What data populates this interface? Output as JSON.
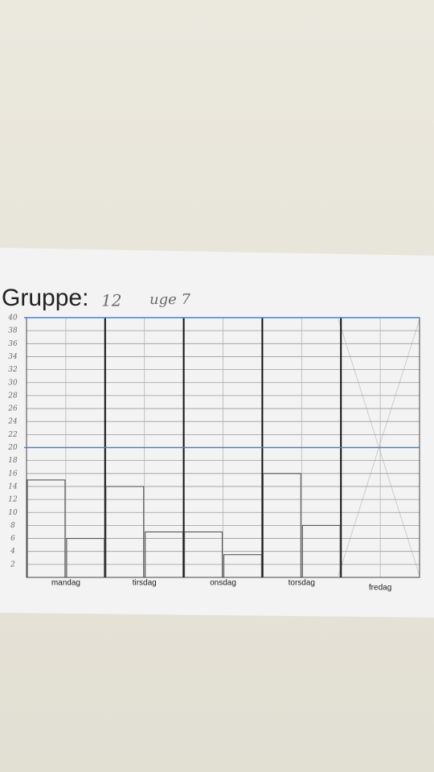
{
  "chart_data": {
    "type": "bar",
    "title": "Gruppe:",
    "annotations": [
      "12",
      "uge 7"
    ],
    "categories": [
      "mandag",
      "tirsdag",
      "onsdag",
      "torsdag",
      "fredag"
    ],
    "series": [
      {
        "color": "#555555",
        "values": [
          15,
          14,
          7,
          16,
          null
        ]
      },
      {
        "color": "#555555",
        "values": [
          6,
          7,
          3.5,
          8,
          null
        ]
      }
    ],
    "ylim": [
      0,
      40
    ],
    "yticks": [
      2,
      4,
      6,
      8,
      10,
      12,
      14,
      16,
      18,
      20,
      22,
      24,
      26,
      28,
      30,
      32,
      34,
      36,
      38,
      40
    ],
    "grid": true,
    "reference_lines": [
      20,
      40
    ],
    "reference_color": "#4a7fd0"
  }
}
